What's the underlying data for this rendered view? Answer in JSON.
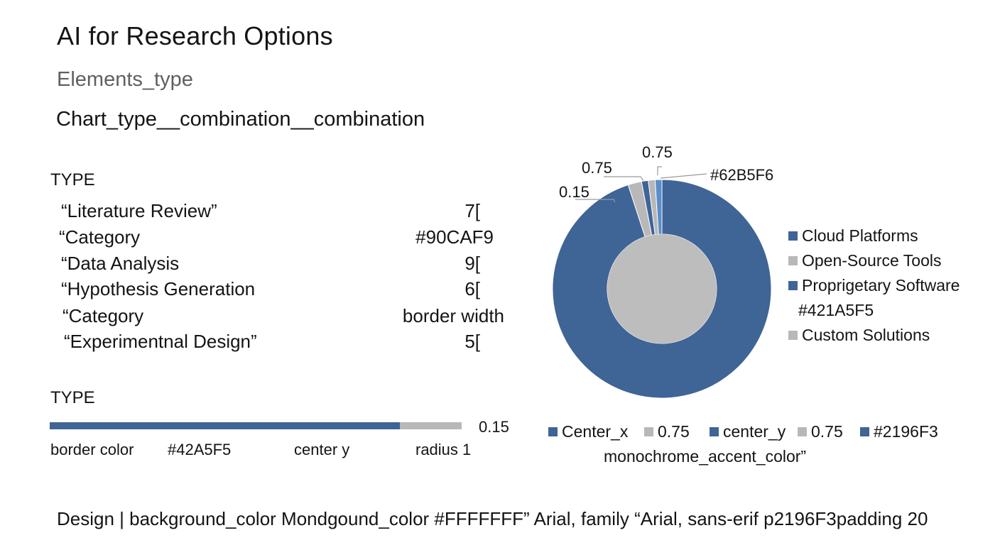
{
  "title": "AI for Research Options",
  "subtitle": "Elements_type",
  "combination": "Chart_type__combination__combination",
  "table": {
    "type_label": "TYPE",
    "rows": [
      {
        "label": "“Literature Review”",
        "value": "7["
      },
      {
        "label": "“Category",
        "value": "#90CAF9"
      },
      {
        "label": "“Data Analysis",
        "value": "9["
      },
      {
        "label": "“Hypothesis Generation",
        "value": "6["
      },
      {
        "label": "“Category",
        "value": "border width"
      },
      {
        "label": "“Experimentnal Design”",
        "value": "5["
      }
    ]
  },
  "bar_section": {
    "type_label": "TYPE",
    "value_label": "0.15",
    "axis_labels": [
      "border color",
      "#42A5F5",
      "center y",
      "radius 1"
    ]
  },
  "chart_data": [
    {
      "type": "bar",
      "orientation": "horizontal",
      "stacked": true,
      "series": [
        {
          "color": "#3F6496",
          "values": [
            0.85
          ]
        },
        {
          "color": "#B8B8B8",
          "values": [
            0.15
          ]
        }
      ],
      "data_labels": [
        "0.15"
      ],
      "tick_labels": [
        "border color",
        "#42A5F5",
        "center y",
        "radius 1"
      ]
    },
    {
      "type": "pie",
      "variant": "donut",
      "slices": [
        {
          "label": "Cloud Platforms",
          "value": 0.95,
          "color": "#3F6496"
        },
        {
          "label": "Open-Source Tools",
          "value": 0.02,
          "color": "#B8B8B8"
        },
        {
          "label": "Proprigetary Software",
          "value": 0.01,
          "color": "#3F6496"
        },
        {
          "label": "Custom Solutions",
          "value": 0.01,
          "color": "#B8B8B8"
        },
        {
          "label": "#421A5F5",
          "value": 0.01,
          "color": "#5B8EC9"
        }
      ],
      "inner_fill": "#BDBDBD",
      "data_labels": [
        "0.15",
        "0.75",
        "0.75",
        "#62B5F6"
      ],
      "legend": {
        "placement": "right",
        "items": [
          {
            "label": "Cloud Platforms",
            "color": "#3F6496"
          },
          {
            "label": "Open-Source Tools",
            "color": "#B8B8B8"
          },
          {
            "label": "Proprigetary Software",
            "color": "#3F6496"
          },
          {
            "label": "#421A5F5",
            "color": ""
          },
          {
            "label": "Custom Solutions",
            "color": "#B8B8B8"
          }
        ]
      },
      "legend_bottom": {
        "placement": "bottom",
        "items": [
          {
            "label": "Center_x",
            "color": "#3F6496"
          },
          {
            "label": "0.75",
            "color": "#B8B8B8"
          },
          {
            "label": "center_y",
            "color": "#3F6496"
          },
          {
            "label": "0.75",
            "color": "#B8B8B8"
          },
          {
            "label": "#2196F3",
            "color": "#3F6496"
          }
        ],
        "caption": "monochrome_accent_color”"
      }
    }
  ],
  "footer": "Design | background_color Mondgound_color  #FFFFFFF”    Arial, family “Arial,  sans-erif p2196F3padding 20"
}
